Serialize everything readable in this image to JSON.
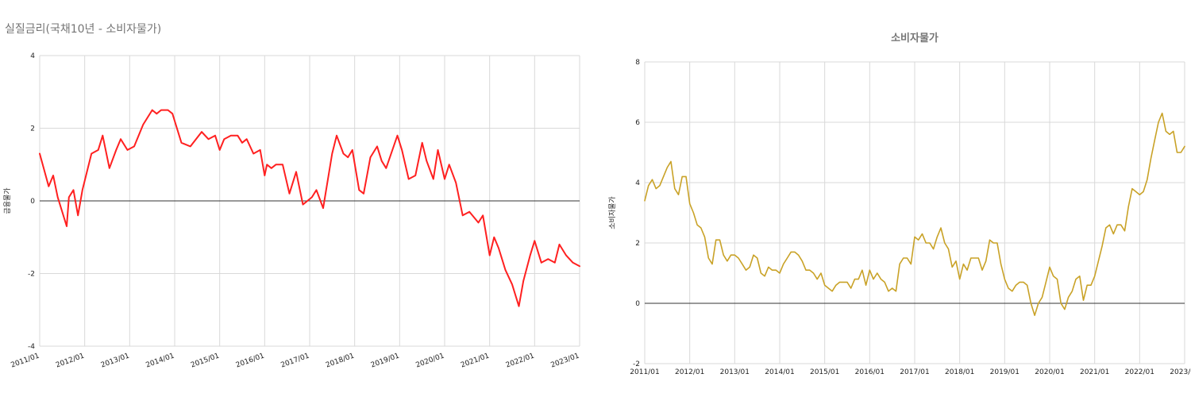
{
  "left_panel": {
    "title": "실질금리(국채10년 - 소비자물가)",
    "chart_data": {
      "type": "line",
      "title": "",
      "ylabel": "금융물가",
      "xlabel": "",
      "x_start": "2011/01",
      "x_end": "2023/01",
      "ylim": [
        -4,
        4
      ],
      "yticks": [
        -4,
        -2,
        0,
        2,
        4
      ],
      "xticks": [
        "2011/01",
        "2012/01",
        "2013/01",
        "2014/01",
        "2015/01",
        "2016/01",
        "2017/01",
        "2018/01",
        "2019/01",
        "2020/01",
        "2021/01",
        "2022/01",
        "2023/01"
      ],
      "grid": true,
      "zero_line": true,
      "series": [
        {
          "color": "#ff2020",
          "x": [
            2011.0,
            2011.2,
            2011.3,
            2011.4,
            2011.6,
            2011.65,
            2011.75,
            2011.85,
            2011.95,
            2012.05,
            2012.15,
            2012.3,
            2012.4,
            2012.55,
            2012.7,
            2012.8,
            2012.95,
            2013.1,
            2013.3,
            2013.5,
            2013.6,
            2013.7,
            2013.85,
            2013.95,
            2014.0,
            2014.15,
            2014.35,
            2014.6,
            2014.75,
            2014.9,
            2015.0,
            2015.1,
            2015.25,
            2015.4,
            2015.5,
            2015.6,
            2015.75,
            2015.9,
            2016.0,
            2016.05,
            2016.15,
            2016.25,
            2016.4,
            2016.55,
            2016.7,
            2016.85,
            2016.95,
            2017.05,
            2017.15,
            2017.3,
            2017.5,
            2017.6,
            2017.75,
            2017.85,
            2017.95,
            2018.1,
            2018.2,
            2018.35,
            2018.5,
            2018.6,
            2018.7,
            2018.95,
            2019.05,
            2019.2,
            2019.35,
            2019.5,
            2019.6,
            2019.75,
            2019.85,
            2020.0,
            2020.1,
            2020.25,
            2020.4,
            2020.55,
            2020.75,
            2020.85,
            2021.0,
            2021.1,
            2021.2,
            2021.35,
            2021.5,
            2021.65,
            2021.75,
            2021.9,
            2022.0,
            2022.15,
            2022.3,
            2022.45,
            2022.55,
            2022.7,
            2022.85,
            2023.0
          ],
          "values": [
            1.3,
            0.4,
            0.7,
            0.1,
            -0.7,
            0.1,
            0.3,
            -0.4,
            0.3,
            0.8,
            1.3,
            1.4,
            1.8,
            0.9,
            1.4,
            1.7,
            1.4,
            1.5,
            2.1,
            2.5,
            2.4,
            2.5,
            2.5,
            2.4,
            2.2,
            1.6,
            1.5,
            1.9,
            1.7,
            1.8,
            1.4,
            1.7,
            1.8,
            1.8,
            1.6,
            1.7,
            1.3,
            1.4,
            0.7,
            1.0,
            0.9,
            1.0,
            1.0,
            0.2,
            0.8,
            -0.1,
            0.0,
            0.1,
            0.3,
            -0.2,
            1.3,
            1.8,
            1.3,
            1.2,
            1.4,
            0.3,
            0.2,
            1.2,
            1.5,
            1.1,
            0.9,
            1.8,
            1.4,
            0.6,
            0.7,
            1.6,
            1.1,
            0.6,
            1.4,
            0.6,
            1.0,
            0.5,
            -0.4,
            -0.3,
            -0.6,
            -0.4,
            -1.5,
            -1.0,
            -1.3,
            -1.9,
            -2.3,
            -2.9,
            -2.2,
            -1.5,
            -1.1,
            -1.7,
            -1.6,
            -1.7,
            -1.2,
            -1.5,
            -1.7,
            -1.8
          ]
        }
      ]
    }
  },
  "right_panel": {
    "chart_data": {
      "type": "line",
      "title": "소비자물가",
      "ylabel": "소비자물가",
      "xlabel": "",
      "x_start": "2011/01",
      "x_end": "2023/01",
      "ylim": [
        -2,
        8
      ],
      "yticks": [
        -2,
        0,
        2,
        4,
        6,
        8
      ],
      "xticks": [
        "2011/01",
        "2012/01",
        "2013/01",
        "2014/01",
        "2015/01",
        "2016/01",
        "2017/01",
        "2018/01",
        "2019/01",
        "2020/01",
        "2021/01",
        "2022/01",
        "2023/01"
      ],
      "grid": true,
      "zero_line": true,
      "series": [
        {
          "color": "#c9a227",
          "x": [
            2011.0,
            2011.083,
            2011.167,
            2011.25,
            2011.333,
            2011.417,
            2011.5,
            2011.583,
            2011.667,
            2011.75,
            2011.833,
            2011.917,
            2012.0,
            2012.083,
            2012.167,
            2012.25,
            2012.333,
            2012.417,
            2012.5,
            2012.583,
            2012.667,
            2012.75,
            2012.833,
            2012.917,
            2013.0,
            2013.083,
            2013.167,
            2013.25,
            2013.333,
            2013.417,
            2013.5,
            2013.583,
            2013.667,
            2013.75,
            2013.833,
            2013.917,
            2014.0,
            2014.083,
            2014.167,
            2014.25,
            2014.333,
            2014.417,
            2014.5,
            2014.583,
            2014.667,
            2014.75,
            2014.833,
            2014.917,
            2015.0,
            2015.083,
            2015.167,
            2015.25,
            2015.333,
            2015.417,
            2015.5,
            2015.583,
            2015.667,
            2015.75,
            2015.833,
            2015.917,
            2016.0,
            2016.083,
            2016.167,
            2016.25,
            2016.333,
            2016.417,
            2016.5,
            2016.583,
            2016.667,
            2016.75,
            2016.833,
            2016.917,
            2017.0,
            2017.083,
            2017.167,
            2017.25,
            2017.333,
            2017.417,
            2017.5,
            2017.583,
            2017.667,
            2017.75,
            2017.833,
            2017.917,
            2018.0,
            2018.083,
            2018.167,
            2018.25,
            2018.333,
            2018.417,
            2018.5,
            2018.583,
            2018.667,
            2018.75,
            2018.833,
            2018.917,
            2019.0,
            2019.083,
            2019.167,
            2019.25,
            2019.333,
            2019.417,
            2019.5,
            2019.583,
            2019.667,
            2019.75,
            2019.833,
            2019.917,
            2020.0,
            2020.083,
            2020.167,
            2020.25,
            2020.333,
            2020.417,
            2020.5,
            2020.583,
            2020.667,
            2020.75,
            2020.833,
            2020.917,
            2021.0,
            2021.083,
            2021.167,
            2021.25,
            2021.333,
            2021.417,
            2021.5,
            2021.583,
            2021.667,
            2021.75,
            2021.833,
            2021.917,
            2022.0,
            2022.083,
            2022.167,
            2022.25,
            2022.333,
            2022.417,
            2022.5,
            2022.583,
            2022.667,
            2022.75,
            2022.833,
            2022.917,
            2023.0
          ],
          "values": [
            3.4,
            3.9,
            4.1,
            3.8,
            3.9,
            4.2,
            4.5,
            4.7,
            3.8,
            3.6,
            4.2,
            4.2,
            3.3,
            3.0,
            2.6,
            2.5,
            2.2,
            1.5,
            1.3,
            2.1,
            2.1,
            1.6,
            1.4,
            1.6,
            1.6,
            1.5,
            1.3,
            1.1,
            1.2,
            1.6,
            1.5,
            1.0,
            0.9,
            1.2,
            1.1,
            1.1,
            1.0,
            1.3,
            1.5,
            1.7,
            1.7,
            1.6,
            1.4,
            1.1,
            1.1,
            1.0,
            0.8,
            1.0,
            0.6,
            0.5,
            0.4,
            0.6,
            0.7,
            0.7,
            0.7,
            0.5,
            0.8,
            0.8,
            1.1,
            0.6,
            1.1,
            0.8,
            1.0,
            0.8,
            0.7,
            0.4,
            0.5,
            0.4,
            1.3,
            1.5,
            1.5,
            1.3,
            2.2,
            2.1,
            2.3,
            2.0,
            2.0,
            1.8,
            2.2,
            2.5,
            2.0,
            1.8,
            1.2,
            1.4,
            0.8,
            1.3,
            1.1,
            1.5,
            1.5,
            1.5,
            1.1,
            1.4,
            2.1,
            2.0,
            2.0,
            1.3,
            0.8,
            0.5,
            0.4,
            0.6,
            0.7,
            0.7,
            0.6,
            0.0,
            -0.4,
            0.0,
            0.2,
            0.7,
            1.2,
            0.9,
            0.8,
            0.0,
            -0.2,
            0.2,
            0.4,
            0.8,
            0.9,
            0.1,
            0.6,
            0.6,
            0.9,
            1.4,
            1.9,
            2.5,
            2.6,
            2.3,
            2.6,
            2.6,
            2.4,
            3.2,
            3.8,
            3.7,
            3.6,
            3.7,
            4.1,
            4.8,
            5.4,
            6.0,
            6.3,
            5.7,
            5.6,
            5.7,
            5.0,
            5.0,
            5.2
          ]
        }
      ]
    }
  }
}
